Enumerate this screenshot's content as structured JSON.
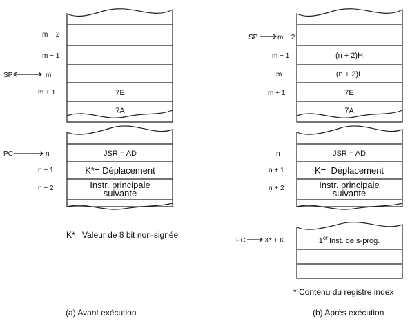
{
  "panel_a": {
    "stack": {
      "rows": [
        {
          "label": "m − 2",
          "content": ""
        },
        {
          "label": "m − 1",
          "content": ""
        },
        {
          "label": "m",
          "content": ""
        },
        {
          "label": "m + 1",
          "content": "7E"
        },
        {
          "label": "",
          "content": "7A"
        }
      ],
      "pointer": "SP"
    },
    "program": {
      "rows": [
        {
          "label": "n",
          "content": "JSR = AD"
        },
        {
          "label": "n + 1",
          "content": "K*= Déplacement"
        },
        {
          "label": "n + 2",
          "content_line1": "Instr. principale",
          "content_line2": "suivante"
        }
      ],
      "pointer": "PC"
    },
    "note": "K*= Valeur de 8 bit non-signée",
    "caption": "(a) Avant exécution"
  },
  "panel_b": {
    "stack": {
      "rows": [
        {
          "label": "m − 2",
          "content": ""
        },
        {
          "label": "m − 1",
          "content": "(n + 2)H"
        },
        {
          "label": "m",
          "content": "(n + 2)L"
        },
        {
          "label": "m + 1",
          "content": "7E"
        },
        {
          "label": "",
          "content": "7A"
        }
      ],
      "pointer": "SP"
    },
    "program": {
      "rows": [
        {
          "label": "n",
          "content": "JSR = AD"
        },
        {
          "label": "n + 1",
          "content": "K=  Déplacement"
        },
        {
          "label": "n + 2",
          "content_line1": "Instr. principale",
          "content_line2": "suivante"
        }
      ]
    },
    "subprog": {
      "pointer": "PC",
      "label": "X* + K",
      "first_sup": "1",
      "first_sup_er": "er",
      "first_text": "Inst. de s-prog."
    },
    "note": "* Contenu du registre index",
    "caption": "(b) Après exécution"
  }
}
